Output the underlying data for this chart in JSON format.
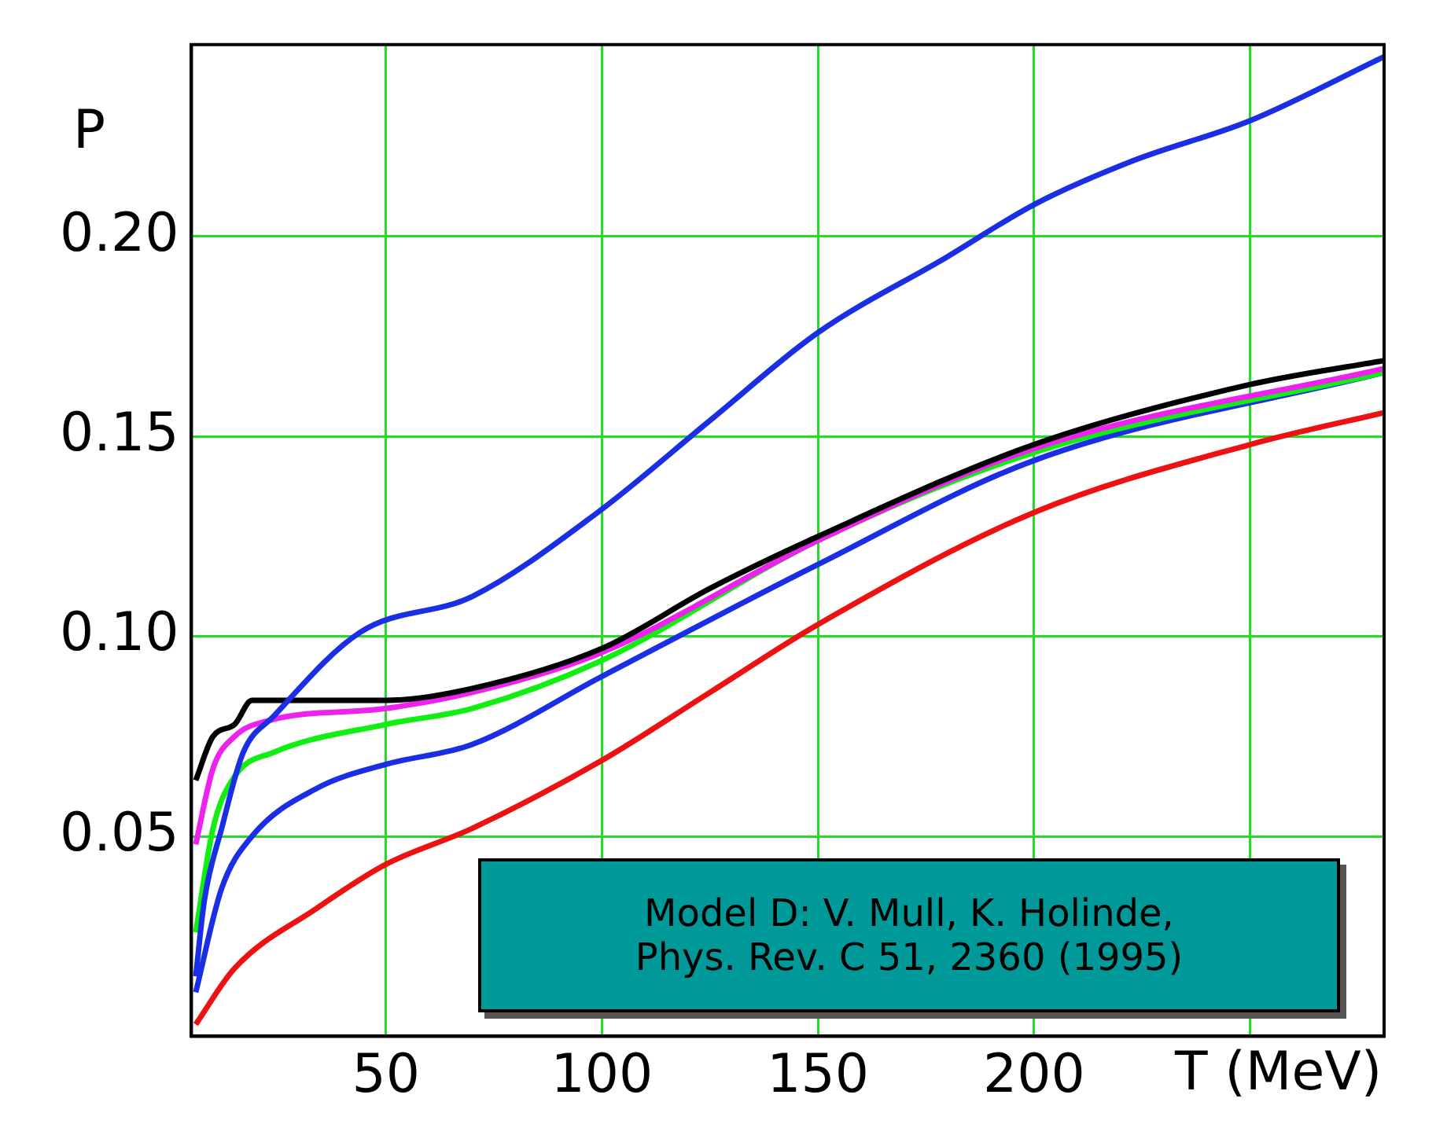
{
  "chart_data": {
    "type": "line",
    "xlabel": "T (MeV)",
    "ylabel": "P",
    "annotations": [
      "Model D: V. Mull, K. Holinde, Phys. Rev. C 51, 2360 (1995)"
    ],
    "xlim": [
      5,
      281
    ],
    "ylim": [
      0,
      0.248
    ],
    "xticks": [
      50,
      100,
      150,
      200,
      {
        "value": 250,
        "label": null
      }
    ],
    "yticks": [
      0.05,
      {
        "value": 0.1,
        "label": "0.10"
      },
      0.15,
      {
        "value": 0.2,
        "label": "0.20"
      }
    ],
    "grid": true,
    "legend": false,
    "marker": "none",
    "line_style": "solid",
    "series": [
      {
        "color": "#1a2ee6",
        "x": [
          6,
          8,
          12,
          17,
          24,
          44,
          70,
          99,
          125,
          150,
          180,
          200,
          223,
          250,
          281
        ],
        "values": [
          0.015,
          0.034,
          0.052,
          0.071,
          0.08,
          0.101,
          0.11,
          0.131,
          0.154,
          0.176,
          0.195,
          0.208,
          0.219,
          0.229,
          0.245
        ]
      },
      {
        "color": "#000000",
        "x": [
          6,
          10,
          15,
          19,
          34,
          50,
          70,
          100,
          125,
          150,
          200,
          250,
          281
        ],
        "values": [
          0.064,
          0.075,
          0.078,
          0.084,
          0.084,
          0.084,
          0.087,
          0.097,
          0.112,
          0.125,
          0.148,
          0.163,
          0.169
        ]
      },
      {
        "color": "#ee22ee",
        "x": [
          6,
          10,
          15,
          23,
          50,
          70,
          100,
          150,
          200,
          281
        ],
        "values": [
          0.048,
          0.067,
          0.075,
          0.079,
          0.082,
          0.086,
          0.096,
          0.124,
          0.147,
          0.167
        ]
      },
      {
        "color": "#11ee11",
        "x": [
          6,
          10,
          15,
          24,
          50,
          70,
          100,
          150,
          200,
          281
        ],
        "values": [
          0.026,
          0.052,
          0.065,
          0.071,
          0.078,
          0.082,
          0.094,
          0.124,
          0.146,
          0.166
        ]
      },
      {
        "color": "#1a2ee6",
        "x": [
          6,
          12,
          19,
          34,
          50,
          70,
          100,
          150,
          200,
          281
        ],
        "values": [
          0.011,
          0.037,
          0.05,
          0.062,
          0.068,
          0.073,
          0.09,
          0.118,
          0.144,
          0.166
        ]
      },
      {
        "color": "#ee1111",
        "x": [
          6,
          15,
          34,
          50,
          70,
          100,
          125,
          150,
          200,
          250,
          281
        ],
        "values": [
          0.003,
          0.017,
          0.032,
          0.043,
          0.052,
          0.069,
          0.086,
          0.103,
          0.131,
          0.148,
          0.156
        ]
      }
    ]
  }
}
